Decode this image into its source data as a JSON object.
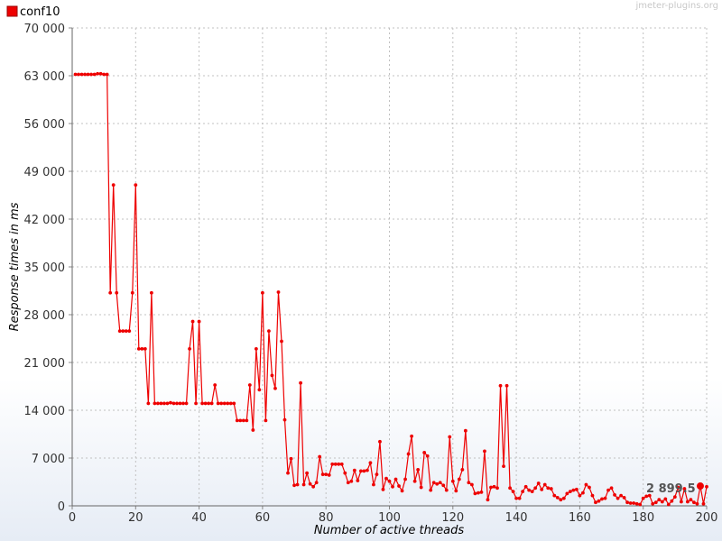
{
  "watermark": "jmeter-plugins.org",
  "colors": {
    "series": "#ee0000",
    "grid": "#c0c0c0",
    "axis": "#999999"
  },
  "chart_data": {
    "type": "line",
    "xlabel": "Number of active threads",
    "ylabel": "Response times in ms",
    "xlim": [
      0,
      200
    ],
    "ylim": [
      0,
      70000
    ],
    "xticks": [
      0,
      20,
      40,
      60,
      80,
      100,
      120,
      140,
      160,
      180,
      200
    ],
    "yticks": [
      0,
      7000,
      14000,
      21000,
      28000,
      35000,
      42000,
      49000,
      56000,
      63000,
      70000
    ],
    "ytick_labels": [
      "0",
      "7 000",
      "14 000",
      "21 000",
      "28 000",
      "35 000",
      "42 000",
      "49 000",
      "56 000",
      "63 000",
      "70 000"
    ],
    "grid": true,
    "legend_position": "top-left",
    "annotation": {
      "text": "2 899.5",
      "x": 198,
      "y": 2899.5
    },
    "series": [
      {
        "name": "conf10",
        "color": "#ee0000",
        "points": [
          [
            1,
            63200
          ],
          [
            2,
            63200
          ],
          [
            3,
            63200
          ],
          [
            4,
            63200
          ],
          [
            5,
            63200
          ],
          [
            6,
            63200
          ],
          [
            7,
            63200
          ],
          [
            8,
            63300
          ],
          [
            9,
            63300
          ],
          [
            10,
            63200
          ],
          [
            11,
            63200
          ],
          [
            12,
            31200
          ],
          [
            13,
            47000
          ],
          [
            14,
            31200
          ],
          [
            15,
            25600
          ],
          [
            16,
            25600
          ],
          [
            17,
            25600
          ],
          [
            18,
            25600
          ],
          [
            19,
            31200
          ],
          [
            20,
            47000
          ],
          [
            21,
            23000
          ],
          [
            22,
            23000
          ],
          [
            23,
            23000
          ],
          [
            24,
            15000
          ],
          [
            25,
            31200
          ],
          [
            26,
            15000
          ],
          [
            27,
            15000
          ],
          [
            28,
            15000
          ],
          [
            29,
            15000
          ],
          [
            30,
            15000
          ],
          [
            31,
            15100
          ],
          [
            32,
            15000
          ],
          [
            33,
            15000
          ],
          [
            34,
            15000
          ],
          [
            35,
            15000
          ],
          [
            36,
            15000
          ],
          [
            37,
            23000
          ],
          [
            38,
            27000
          ],
          [
            39,
            15000
          ],
          [
            40,
            27000
          ],
          [
            41,
            15000
          ],
          [
            42,
            15000
          ],
          [
            43,
            15000
          ],
          [
            44,
            15000
          ],
          [
            45,
            17700
          ],
          [
            46,
            15000
          ],
          [
            47,
            15000
          ],
          [
            48,
            15000
          ],
          [
            49,
            15000
          ],
          [
            50,
            15000
          ],
          [
            51,
            15000
          ],
          [
            52,
            12500
          ],
          [
            53,
            12500
          ],
          [
            54,
            12500
          ],
          [
            55,
            12500
          ],
          [
            56,
            17700
          ],
          [
            57,
            11100
          ],
          [
            58,
            23000
          ],
          [
            59,
            17000
          ],
          [
            60,
            31200
          ],
          [
            61,
            12500
          ],
          [
            62,
            25600
          ],
          [
            63,
            19100
          ],
          [
            64,
            17200
          ],
          [
            65,
            31300
          ],
          [
            66,
            24100
          ],
          [
            67,
            12600
          ],
          [
            68,
            4800
          ],
          [
            69,
            6900
          ],
          [
            70,
            3000
          ],
          [
            71,
            3100
          ],
          [
            72,
            18000
          ],
          [
            73,
            3100
          ],
          [
            74,
            4800
          ],
          [
            75,
            3200
          ],
          [
            76,
            2800
          ],
          [
            77,
            3400
          ],
          [
            78,
            7200
          ],
          [
            79,
            4600
          ],
          [
            80,
            4600
          ],
          [
            81,
            4500
          ],
          [
            82,
            6100
          ],
          [
            83,
            6100
          ],
          [
            84,
            6100
          ],
          [
            85,
            6100
          ],
          [
            86,
            4800
          ],
          [
            87,
            3400
          ],
          [
            88,
            3600
          ],
          [
            89,
            5200
          ],
          [
            90,
            3700
          ],
          [
            91,
            5100
          ],
          [
            92,
            5100
          ],
          [
            93,
            5200
          ],
          [
            94,
            6300
          ],
          [
            95,
            3100
          ],
          [
            96,
            4600
          ],
          [
            97,
            9400
          ],
          [
            98,
            2400
          ],
          [
            99,
            4000
          ],
          [
            100,
            3600
          ],
          [
            101,
            2800
          ],
          [
            102,
            3900
          ],
          [
            103,
            2900
          ],
          [
            104,
            2200
          ],
          [
            105,
            3900
          ],
          [
            106,
            7600
          ],
          [
            107,
            10200
          ],
          [
            108,
            3600
          ],
          [
            109,
            5300
          ],
          [
            110,
            2700
          ],
          [
            111,
            7800
          ],
          [
            112,
            7300
          ],
          [
            113,
            2300
          ],
          [
            114,
            3400
          ],
          [
            115,
            3200
          ],
          [
            116,
            3400
          ],
          [
            117,
            3000
          ],
          [
            118,
            2300
          ],
          [
            119,
            10100
          ],
          [
            120,
            3600
          ],
          [
            121,
            2200
          ],
          [
            122,
            3900
          ],
          [
            123,
            5300
          ],
          [
            124,
            11000
          ],
          [
            125,
            3400
          ],
          [
            126,
            3100
          ],
          [
            127,
            1800
          ],
          [
            128,
            1900
          ],
          [
            129,
            2000
          ],
          [
            130,
            8000
          ],
          [
            131,
            900
          ],
          [
            132,
            2700
          ],
          [
            133,
            2800
          ],
          [
            134,
            2600
          ],
          [
            135,
            17600
          ],
          [
            136,
            5800
          ],
          [
            137,
            17600
          ],
          [
            138,
            2600
          ],
          [
            139,
            2100
          ],
          [
            140,
            1100
          ],
          [
            141,
            1100
          ],
          [
            142,
            2100
          ],
          [
            143,
            2800
          ],
          [
            144,
            2300
          ],
          [
            145,
            2100
          ],
          [
            146,
            2600
          ],
          [
            147,
            3300
          ],
          [
            148,
            2400
          ],
          [
            149,
            3100
          ],
          [
            150,
            2600
          ],
          [
            151,
            2500
          ],
          [
            152,
            1500
          ],
          [
            153,
            1200
          ],
          [
            154,
            900
          ],
          [
            155,
            1100
          ],
          [
            156,
            1800
          ],
          [
            157,
            2100
          ],
          [
            158,
            2300
          ],
          [
            159,
            2400
          ],
          [
            160,
            1500
          ],
          [
            161,
            1900
          ],
          [
            162,
            3100
          ],
          [
            163,
            2700
          ],
          [
            164,
            1500
          ],
          [
            165,
            500
          ],
          [
            166,
            700
          ],
          [
            167,
            1000
          ],
          [
            168,
            1100
          ],
          [
            169,
            2300
          ],
          [
            170,
            2600
          ],
          [
            171,
            1600
          ],
          [
            172,
            1100
          ],
          [
            173,
            1500
          ],
          [
            174,
            1200
          ],
          [
            175,
            500
          ],
          [
            176,
            400
          ],
          [
            177,
            400
          ],
          [
            178,
            300
          ],
          [
            179,
            200
          ],
          [
            180,
            1100
          ],
          [
            181,
            1400
          ],
          [
            182,
            1500
          ],
          [
            183,
            300
          ],
          [
            184,
            500
          ],
          [
            185,
            900
          ],
          [
            186,
            600
          ],
          [
            187,
            1000
          ],
          [
            188,
            200
          ],
          [
            189,
            700
          ],
          [
            190,
            1300
          ],
          [
            191,
            2700
          ],
          [
            192,
            600
          ],
          [
            193,
            2500
          ],
          [
            194,
            600
          ],
          [
            195,
            900
          ],
          [
            196,
            500
          ],
          [
            197,
            300
          ],
          [
            198,
            2899.5
          ],
          [
            199,
            300
          ],
          [
            200,
            2800
          ]
        ]
      }
    ]
  }
}
